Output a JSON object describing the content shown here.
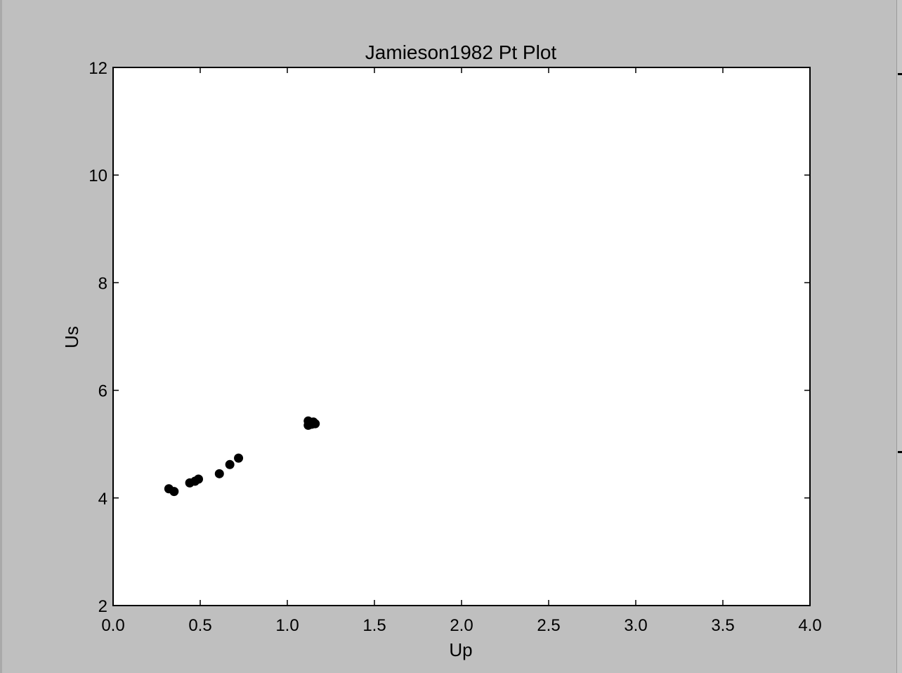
{
  "chart_data": {
    "type": "scatter",
    "title": "Jamieson1982 Pt Plot",
    "xlabel": "Up",
    "ylabel": "Us",
    "xlim": [
      0.0,
      4.0
    ],
    "ylim": [
      2,
      12
    ],
    "xticks": [
      "0.0",
      "0.5",
      "1.0",
      "1.5",
      "2.0",
      "2.5",
      "3.0",
      "3.5",
      "4.0"
    ],
    "yticks": [
      "2",
      "4",
      "6",
      "8",
      "10",
      "12"
    ],
    "grid": false,
    "marker_color": "#000000",
    "series": [
      {
        "x": [
          0.32,
          0.35,
          0.44,
          0.47,
          0.49,
          0.61,
          0.67,
          0.72,
          1.12,
          1.13,
          1.14,
          1.15,
          1.12,
          1.16
        ],
        "y": [
          4.17,
          4.12,
          4.28,
          4.31,
          4.35,
          4.45,
          4.62,
          4.74,
          5.35,
          5.39,
          5.37,
          5.41,
          5.43,
          5.38
        ]
      }
    ]
  }
}
